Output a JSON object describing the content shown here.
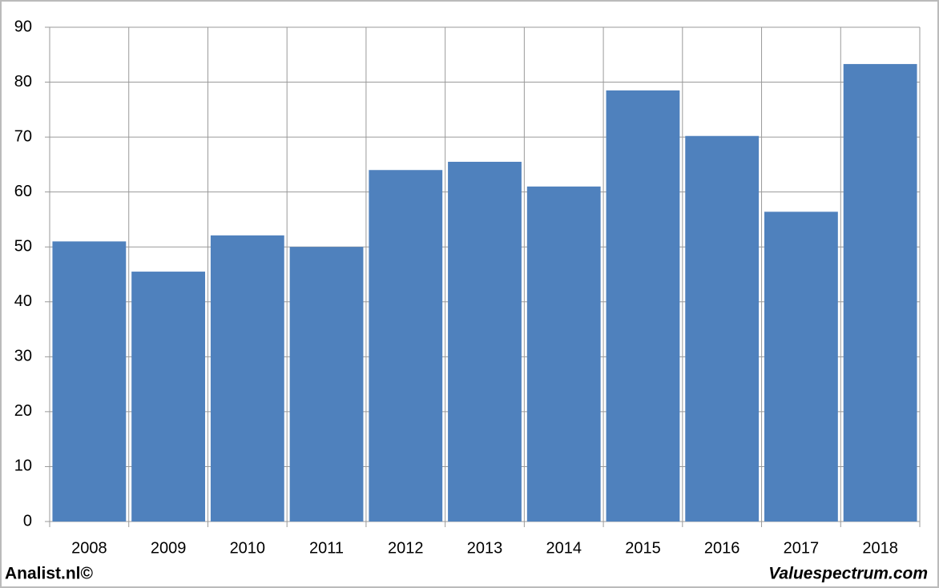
{
  "chart_data": {
    "type": "bar",
    "categories": [
      "2008",
      "2009",
      "2010",
      "2011",
      "2012",
      "2013",
      "2014",
      "2015",
      "2016",
      "2017",
      "2018"
    ],
    "values": [
      51,
      45.5,
      52.1,
      50,
      64,
      65.5,
      61,
      78.5,
      70.2,
      56.4,
      83.3
    ],
    "color": "#4f81bd",
    "ylim": [
      0,
      90
    ],
    "yticks": [
      0,
      10,
      20,
      30,
      40,
      50,
      60,
      70,
      80,
      90
    ],
    "grid": true,
    "annotations": [
      "Analist.nl©",
      "Valuespectrum.com"
    ]
  }
}
